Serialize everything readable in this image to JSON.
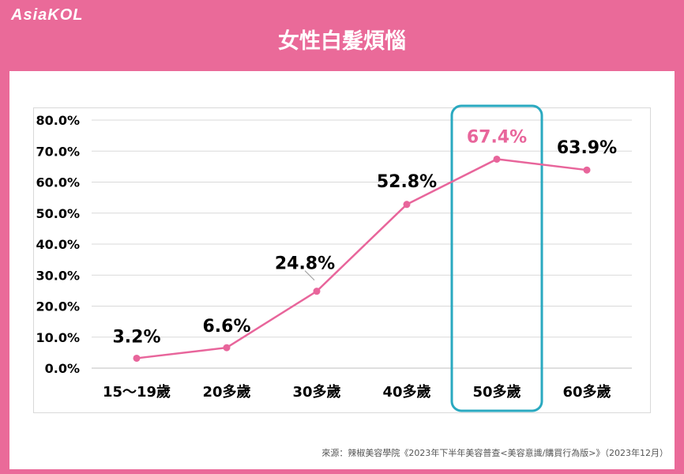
{
  "header": {
    "logo_text": "AsiaKOL",
    "title": "女性白髮煩惱"
  },
  "source": "來源：辣椒美容學院《2023年下半年美容普查<美容意識/購買行為版>》（2023年12月）",
  "colors": {
    "frame": "#ea6a99",
    "line": "#e8659b",
    "highlight_box": "#2aa9c0",
    "highlight_label": "#e8659b"
  },
  "chart_data": {
    "type": "line",
    "categories": [
      "15～19歲",
      "20多歲",
      "30多歲",
      "40多歲",
      "50多歲",
      "60多歲"
    ],
    "series": [
      {
        "values": [
          3.2,
          6.6,
          24.8,
          52.8,
          67.4,
          63.9
        ]
      }
    ],
    "data_labels": [
      "3.2%",
      "6.6%",
      "24.8%",
      "52.8%",
      "67.4%",
      "63.9%"
    ],
    "y_ticks": [
      "0.0%",
      "10.0%",
      "20.0%",
      "30.0%",
      "40.0%",
      "50.0%",
      "60.0%",
      "70.0%",
      "80.0%"
    ],
    "ylim": [
      0,
      80
    ],
    "grid": true,
    "highlight_category": "50多歲",
    "title": "",
    "xlabel": "",
    "ylabel": ""
  }
}
